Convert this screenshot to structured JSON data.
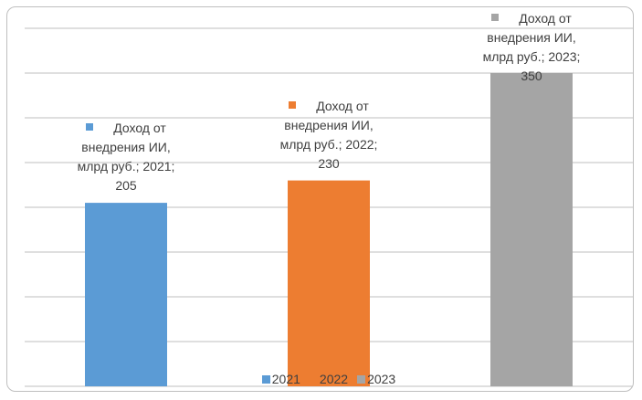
{
  "chart_data": {
    "type": "bar",
    "series": [
      {
        "name": "2021",
        "color": "#5b9bd5",
        "values": [
          205
        ],
        "value_labels": [
          "Доход от внедрения ИИ, млрд руб.; 2021; 205"
        ]
      },
      {
        "name": "2022",
        "color": "#ed7d31",
        "values": [
          230
        ],
        "value_labels": [
          "Доход от внедрения ИИ, млрд руб.; 2022; 230"
        ]
      },
      {
        "name": "2023",
        "color": "#a5a5a5",
        "values": [
          350
        ],
        "value_labels": [
          "Доход от внедрения ИИ, млрд руб.; 2023; 350"
        ]
      }
    ],
    "ylim": [
      0,
      400
    ],
    "yticks": [
      0,
      50,
      100,
      150,
      200,
      250,
      300,
      350,
      400
    ],
    "grid": true,
    "legend": "bottom"
  }
}
